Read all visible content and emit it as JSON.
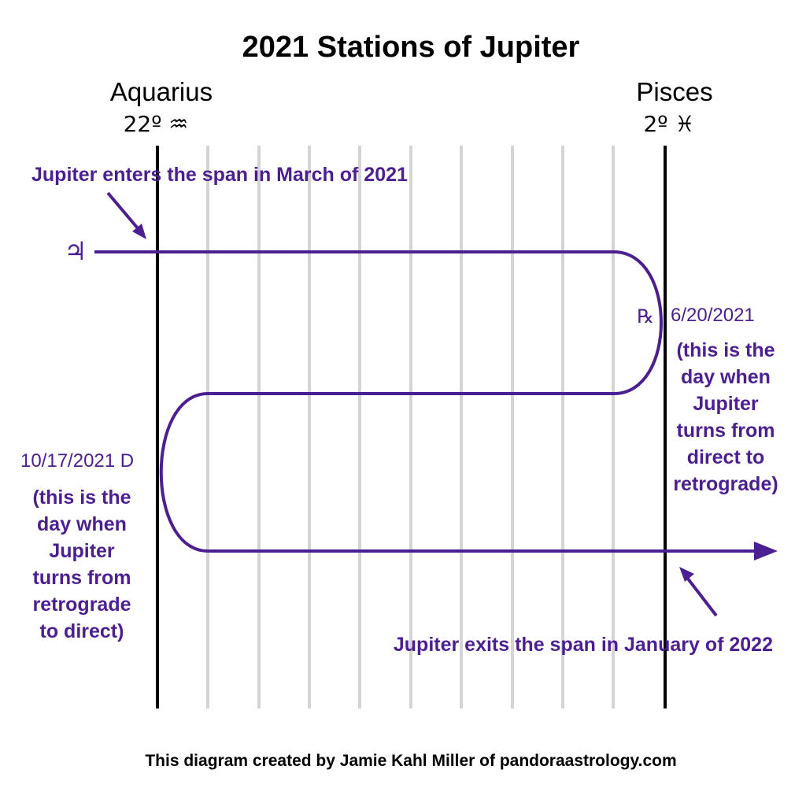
{
  "title": "2021 Stations of Jupiter",
  "left_sign": {
    "name": "Aquarius",
    "degree": "22º ♒"
  },
  "right_sign": {
    "name": "Pisces",
    "degree": "2º ♓"
  },
  "enter_note": "Jupiter enters the span in March of 2021",
  "planet_glyph": "♃",
  "retrograde_station": {
    "glyph": "℞",
    "date": "6/20/2021",
    "note_lines": [
      "(this is the",
      "day when",
      "Jupiter",
      "turns from",
      "direct to",
      "retrograde)"
    ]
  },
  "direct_station": {
    "date": "10/17/2021 D",
    "note_lines": [
      "(this is the",
      "day when",
      "Jupiter",
      "turns from",
      "retrograde",
      "to direct)"
    ]
  },
  "exit_note": "Jupiter exits the span in January of 2022",
  "footer": "This diagram created by Jamie Kahl Miller of pandoraastrology.com"
}
